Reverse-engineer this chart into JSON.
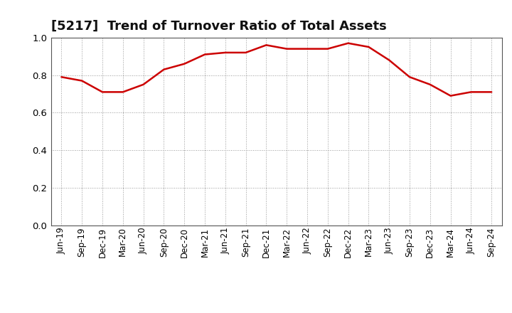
{
  "title": "[5217]  Trend of Turnover Ratio of Total Assets",
  "x_labels": [
    "Jun-19",
    "Sep-19",
    "Dec-19",
    "Mar-20",
    "Jun-20",
    "Sep-20",
    "Dec-20",
    "Mar-21",
    "Jun-21",
    "Sep-21",
    "Dec-21",
    "Mar-22",
    "Jun-22",
    "Sep-22",
    "Dec-22",
    "Mar-23",
    "Jun-23",
    "Sep-23",
    "Dec-23",
    "Mar-24",
    "Jun-24",
    "Sep-24"
  ],
  "values": [
    0.79,
    0.77,
    0.71,
    0.71,
    0.75,
    0.83,
    0.86,
    0.91,
    0.92,
    0.92,
    0.96,
    0.94,
    0.94,
    0.94,
    0.97,
    0.95,
    0.88,
    0.79,
    0.75,
    0.69,
    0.71,
    0.71
  ],
  "line_color": "#cc0000",
  "line_width": 1.8,
  "ylim": [
    0.0,
    1.0
  ],
  "yticks": [
    0.0,
    0.2,
    0.4,
    0.6,
    0.8,
    1.0
  ],
  "grid_color": "#999999",
  "background_color": "#ffffff",
  "title_fontsize": 13,
  "tick_fontsize": 8.5
}
